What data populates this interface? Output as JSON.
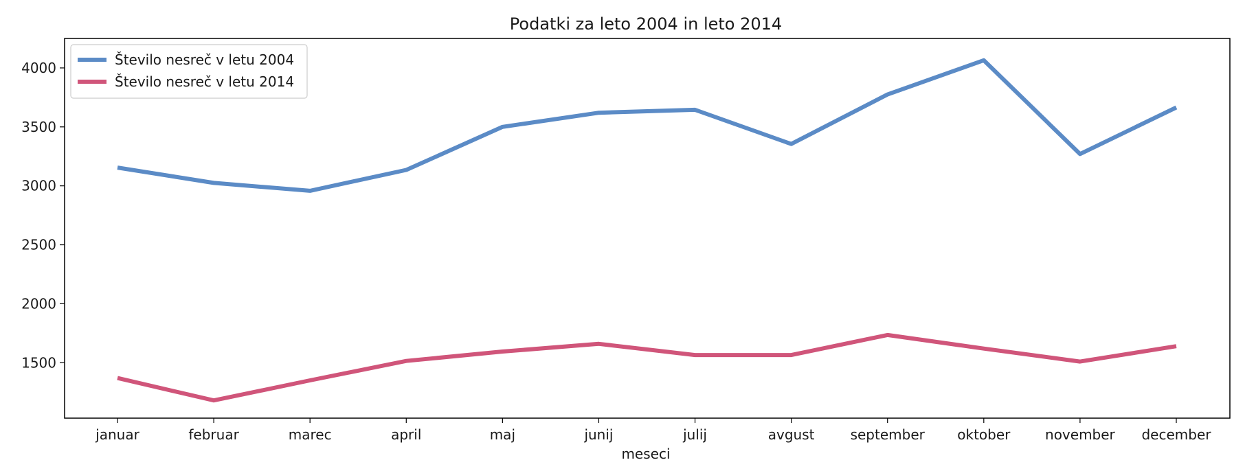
{
  "chart_data": {
    "type": "line",
    "title": "Podatki za leto 2004 in leto 2014",
    "xlabel": "meseci",
    "ylabel": "",
    "categories": [
      "januar",
      "februar",
      "marec",
      "april",
      "maj",
      "junij",
      "julij",
      "avgust",
      "september",
      "oktober",
      "november",
      "december"
    ],
    "ylim": [
      1030,
      4250
    ],
    "yticks": [
      1500,
      2000,
      2500,
      3000,
      3500,
      4000
    ],
    "grid": false,
    "legend_position": "top-left",
    "series": [
      {
        "name": "Število nesreč v letu 2004",
        "color": "#5b8bc6",
        "values": [
          3155,
          3025,
          2958,
          3135,
          3500,
          3620,
          3645,
          3355,
          3775,
          4065,
          3270,
          3665
        ]
      },
      {
        "name": "Število nesreč v letu 2014",
        "color": "#d0557a",
        "values": [
          1370,
          1180,
          1350,
          1515,
          1595,
          1660,
          1565,
          1565,
          1735,
          1620,
          1510,
          1640
        ]
      }
    ]
  }
}
